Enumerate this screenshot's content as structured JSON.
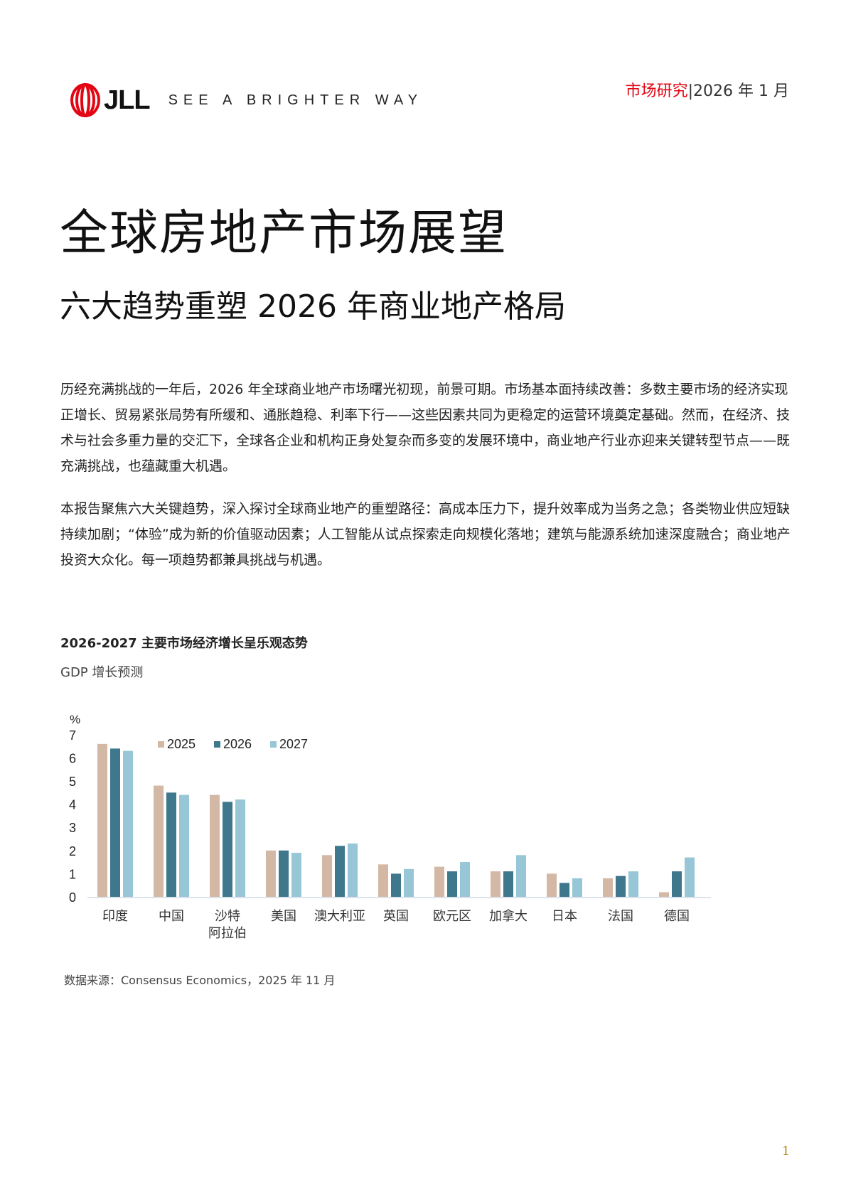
{
  "header": {
    "logo_text": "JLL",
    "tagline": "SEE A BRIGHTER WAY",
    "section": "市场研究",
    "separator": "|",
    "date": "2026 年 1 月"
  },
  "title": "全球房地产市场展望",
  "subtitle": "六大趋势重塑 2026 年商业地产格局",
  "paragraphs": [
    "历经充满挑战的一年后，2026 年全球商业地产市场曙光初现，前景可期。市场基本面持续改善：多数主要市场的经济实现正增长、贸易紧张局势有所缓和、通胀趋稳、利率下行——这些因素共同为更稳定的运营环境奠定基础。然而，在经济、技术与社会多重力量的交汇下，全球各企业和机构正身处复杂而多变的发展环境中，商业地产行业亦迎来关键转型节点——既充满挑战，也蕴藏重大机遇。",
    "本报告聚焦六大关键趋势，深入探讨全球商业地产的重塑路径：高成本压力下，提升效率成为当务之急；各类物业供应短缺持续加剧；“体验”成为新的价值驱动因素；人工智能从试点探索走向规模化落地；建筑与能源系统加速深度融合；商业地产投资大众化。每一项趋势都兼具挑战与机遇。"
  ],
  "chart_data": {
    "type": "bar",
    "title": "2026-2027 主要市场经济增长呈乐观态势",
    "subtitle": "GDP 增长预测",
    "ylabel": "%",
    "ylim": [
      0,
      7
    ],
    "yticks": [
      "0",
      "1",
      "2",
      "3",
      "4",
      "5",
      "6",
      "7"
    ],
    "categories": [
      "印度",
      "中国",
      "沙特\n阿拉伯",
      "美国",
      "澳大利亚",
      "英国",
      "欧元区",
      "加拿大",
      "日本",
      "法国",
      "德国"
    ],
    "series": [
      {
        "name": "2025",
        "color": "#d4b8a6",
        "values": [
          6.6,
          4.8,
          4.4,
          2.0,
          1.8,
          1.4,
          1.3,
          1.1,
          1.0,
          0.8,
          0.2
        ]
      },
      {
        "name": "2026",
        "color": "#3f778c",
        "values": [
          6.4,
          4.5,
          4.1,
          2.0,
          2.2,
          1.0,
          1.1,
          1.1,
          0.6,
          0.9,
          1.1
        ]
      },
      {
        "name": "2027",
        "color": "#97c6d6",
        "values": [
          6.3,
          4.4,
          4.2,
          1.9,
          2.3,
          1.2,
          1.5,
          1.8,
          0.8,
          1.1,
          1.7
        ]
      }
    ],
    "legend": "top",
    "grid": false,
    "source": "数据来源：Consensus Economics，2025 年 11 月"
  },
  "page_number": "1",
  "colors": {
    "brand_red": "#e30613"
  }
}
